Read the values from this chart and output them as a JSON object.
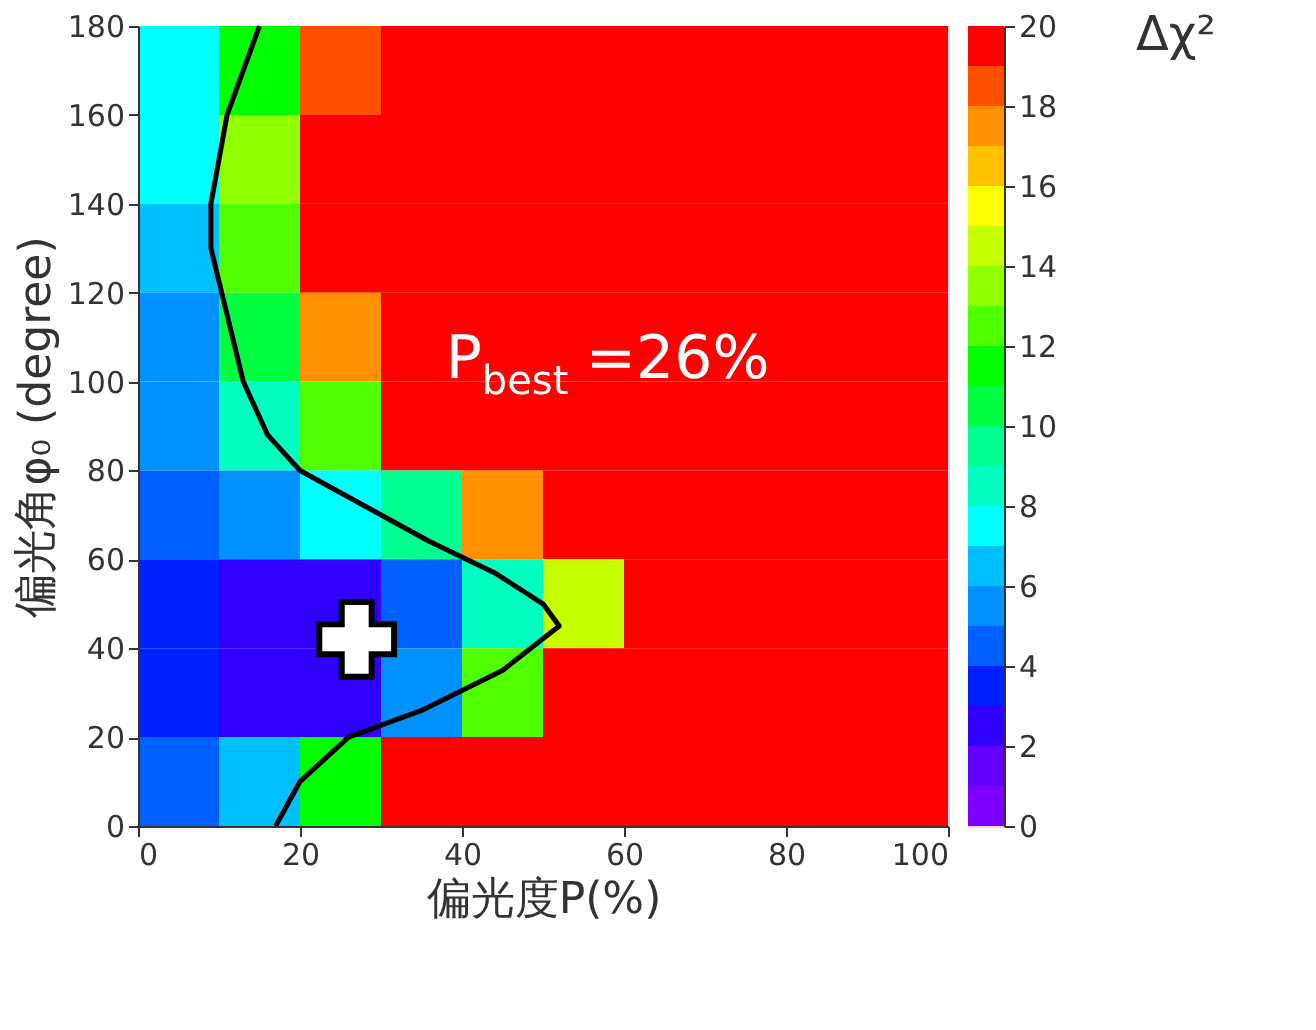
{
  "chart_data": {
    "type": "heatmap",
    "xlabel": "偏光度P(%)",
    "ylabel": "偏光角φ₀ (degree)",
    "clabel": "Δχ²",
    "x": [
      5,
      15,
      25,
      35,
      45,
      55,
      65,
      75,
      85,
      95
    ],
    "y": [
      170,
      150,
      130,
      110,
      90,
      70,
      50,
      30,
      10
    ],
    "cells": [
      [
        7,
        11,
        18,
        20,
        20,
        20,
        20,
        20,
        20,
        20
      ],
      [
        7,
        13,
        20,
        20,
        20,
        20,
        20,
        20,
        20,
        20
      ],
      [
        6,
        12,
        20,
        20,
        20,
        20,
        20,
        20,
        20,
        20
      ],
      [
        5,
        10,
        17,
        20,
        20,
        20,
        20,
        20,
        20,
        20
      ],
      [
        5,
        8,
        12,
        20,
        20,
        20,
        20,
        20,
        20,
        20
      ],
      [
        4,
        5,
        7,
        9,
        17,
        20,
        20,
        20,
        20,
        20
      ],
      [
        3,
        2,
        2,
        4,
        8,
        14,
        20,
        20,
        20,
        20
      ],
      [
        3,
        2,
        2,
        5,
        12,
        20,
        20,
        20,
        20,
        20
      ],
      [
        4,
        6,
        11,
        20,
        20,
        20,
        20,
        20,
        20,
        20
      ]
    ],
    "colors": [
      "#8000ff",
      "#6000ff",
      "#3000ff",
      "#0020ff",
      "#0060ff",
      "#0090ff",
      "#00c0ff",
      "#00ffff",
      "#00ffc0",
      "#00ff90",
      "#00ff40",
      "#00ff00",
      "#50ff00",
      "#90ff00",
      "#c8ff00",
      "#ffff00",
      "#ffc000",
      "#ff9000",
      "#ff5000",
      "#ff0000"
    ],
    "clim": [
      0,
      20
    ],
    "cticks": [
      0,
      2,
      4,
      6,
      8,
      10,
      12,
      14,
      16,
      18,
      20
    ],
    "xlim": [
      0,
      100
    ],
    "xticks": [
      0,
      20,
      40,
      60,
      80,
      100
    ],
    "ylim": [
      0,
      180
    ],
    "yticks": [
      0,
      20,
      40,
      60,
      80,
      100,
      120,
      140,
      160,
      180
    ],
    "series": [
      {
        "type": "line",
        "color": "#000000",
        "x": [
          17,
          20,
          26,
          35,
          45,
          52,
          50,
          44,
          36,
          28,
          20,
          16,
          13,
          11,
          9,
          9,
          10,
          11,
          13,
          15
        ],
        "values": [
          0,
          10,
          20,
          26,
          35,
          45,
          50,
          57,
          64,
          72,
          80,
          88,
          100,
          115,
          130,
          140,
          150,
          160,
          170,
          180
        ]
      },
      {
        "type": "scatter",
        "marker": "cross",
        "color": "#ffffff",
        "x": [
          27
        ],
        "values": [
          42
        ]
      }
    ],
    "annotations": [
      "P$_{best}$ =26%"
    ],
    "grid": false
  }
}
